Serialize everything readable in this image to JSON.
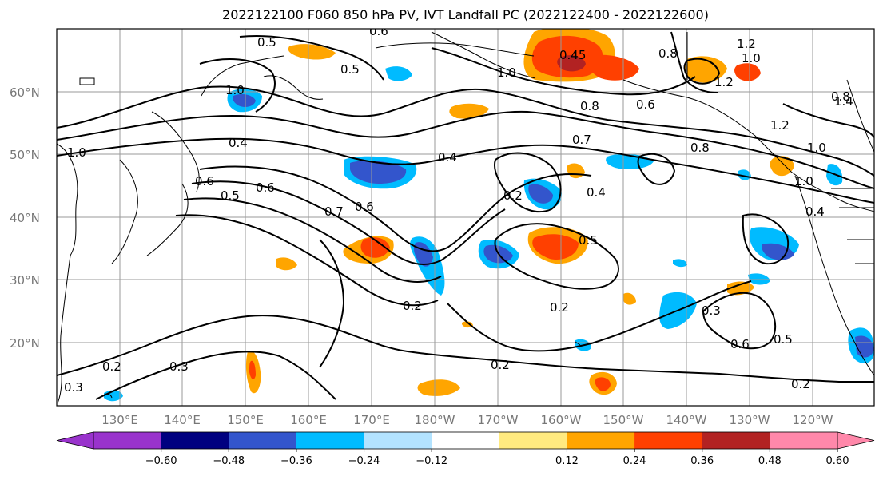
{
  "title": "2022122100 F060 850 hPa PV, IVT Landfall PC (2022122400 - 2022122600)",
  "lat_labels": [
    "60°N",
    "50°N",
    "40°N",
    "30°N",
    "20°N"
  ],
  "lon_labels": [
    "130°E",
    "140°E",
    "150°E",
    "160°E",
    "170°E",
    "180°W",
    "170°W",
    "160°W",
    "150°W",
    "140°W",
    "130°W",
    "120°W"
  ],
  "colorbar": {
    "ticks": [
      "−0.60",
      "−0.48",
      "−0.36",
      "−0.24",
      "−0.12",
      "0.12",
      "0.24",
      "0.36",
      "0.48",
      "0.60"
    ],
    "colors": [
      "#9933cc",
      "#000080",
      "#3355cc",
      "#00bbff",
      "#b3e3ff",
      "#ffffff",
      "#ffea80",
      "#ffa500",
      "#ff4000",
      "#b22222",
      "#ff88aa"
    ]
  },
  "contour_labels": [
    "0.5",
    "0.5",
    "0.6",
    "1.0",
    "0.8",
    "0.45",
    "1.2",
    "1.0",
    "0.8",
    "1.2",
    "1.0",
    "0.8",
    "1.4",
    "0.6",
    "0.4",
    "1.0",
    "0.4",
    "0.7",
    "0.8",
    "1.2",
    "1.0",
    "1.0",
    "0.4",
    "0.6",
    "0.5",
    "0.6",
    "0.2",
    "0.4",
    "0.7",
    "0.6",
    "0.5",
    "0.2",
    "0.2",
    "0.3",
    "0.2",
    "0.2",
    "0.3",
    "0.6",
    "0.5",
    "0.2",
    "0.3"
  ]
}
